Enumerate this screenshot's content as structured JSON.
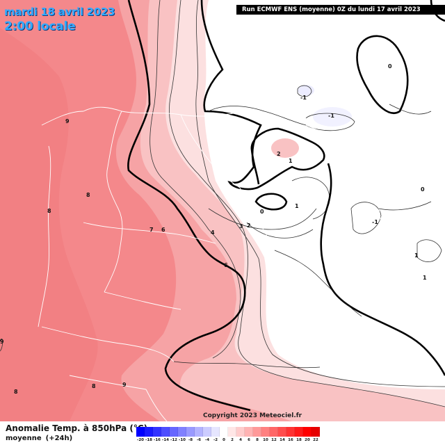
{
  "header": {
    "date_line": "mardi 18 avril 2023",
    "time_line": "2:00 locale",
    "run_info": "Run ECMWF ENS (moyenne) 0Z du lundi 17 avril 2023"
  },
  "copyright": "Copyright 2023 Meteociel.fr",
  "legend": {
    "title": "Anomalie Temp. à 850hPa (°C)",
    "sub_label": "moyenne",
    "sub_offset": "(+24h)",
    "scale_values": [
      "-20",
      "-18",
      "-16",
      "-14",
      "-12",
      "-10",
      "-8",
      "-6",
      "-4",
      "-2",
      "0",
      "2",
      "4",
      "6",
      "8",
      "10",
      "12",
      "14",
      "16",
      "18",
      "20",
      "22"
    ],
    "scale_colors": [
      "#0000ff",
      "#1a1aff",
      "#3333ff",
      "#4d4dff",
      "#6666ff",
      "#8080ff",
      "#9999ff",
      "#b3b3ff",
      "#ccccff",
      "#e6e6ff",
      "#ffffff",
      "#ffe6e6",
      "#ffcccc",
      "#ffb3b3",
      "#ff9999",
      "#ff8080",
      "#ff6666",
      "#ff4d4d",
      "#ff3333",
      "#ff1a1a",
      "#ff0000",
      "#e60000"
    ]
  },
  "map_labels": [
    {
      "text": "9",
      "role": "contour-9-north"
    },
    {
      "text": "8",
      "role": "contour-8-west"
    },
    {
      "text": "8",
      "role": "contour-8-center"
    },
    {
      "text": "7",
      "role": "contour-7"
    },
    {
      "text": "6",
      "role": "contour-6-a"
    },
    {
      "text": "6",
      "role": "contour-6-b"
    },
    {
      "text": "4",
      "role": "contour-4"
    },
    {
      "text": "3",
      "role": "contour-3"
    },
    {
      "text": "2",
      "role": "contour-2-a"
    },
    {
      "text": "2",
      "role": "contour-2-b"
    },
    {
      "text": "1",
      "role": "contour-1-a"
    },
    {
      "text": "1",
      "role": "contour-1-b"
    },
    {
      "text": "0",
      "role": "contour-0-a"
    },
    {
      "text": "0",
      "role": "contour-0-b"
    },
    {
      "text": "0",
      "role": "contour-0-c"
    },
    {
      "text": "-1",
      "role": "contour-neg1-a"
    },
    {
      "text": "-1",
      "role": "contour-neg1-b"
    },
    {
      "text": "-1",
      "role": "contour-neg1-c"
    },
    {
      "text": "1",
      "role": "contour-1-east-a"
    },
    {
      "text": "1",
      "role": "contour-1-east-b"
    },
    {
      "text": "9",
      "role": "contour-9-south"
    },
    {
      "text": "8",
      "role": "contour-8-south"
    },
    {
      "text": "8",
      "role": "contour-8-southwest"
    },
    {
      "text": "9",
      "role": "contour-9-west"
    }
  ],
  "colors": {
    "warm_strong": "#f4888b",
    "warm_mid": "#f6a3a5",
    "warm_light": "#f9c2c3",
    "warm_pale": "#fce0e0",
    "neutral": "#ffffff",
    "cool_pale": "#e9e9ff"
  }
}
